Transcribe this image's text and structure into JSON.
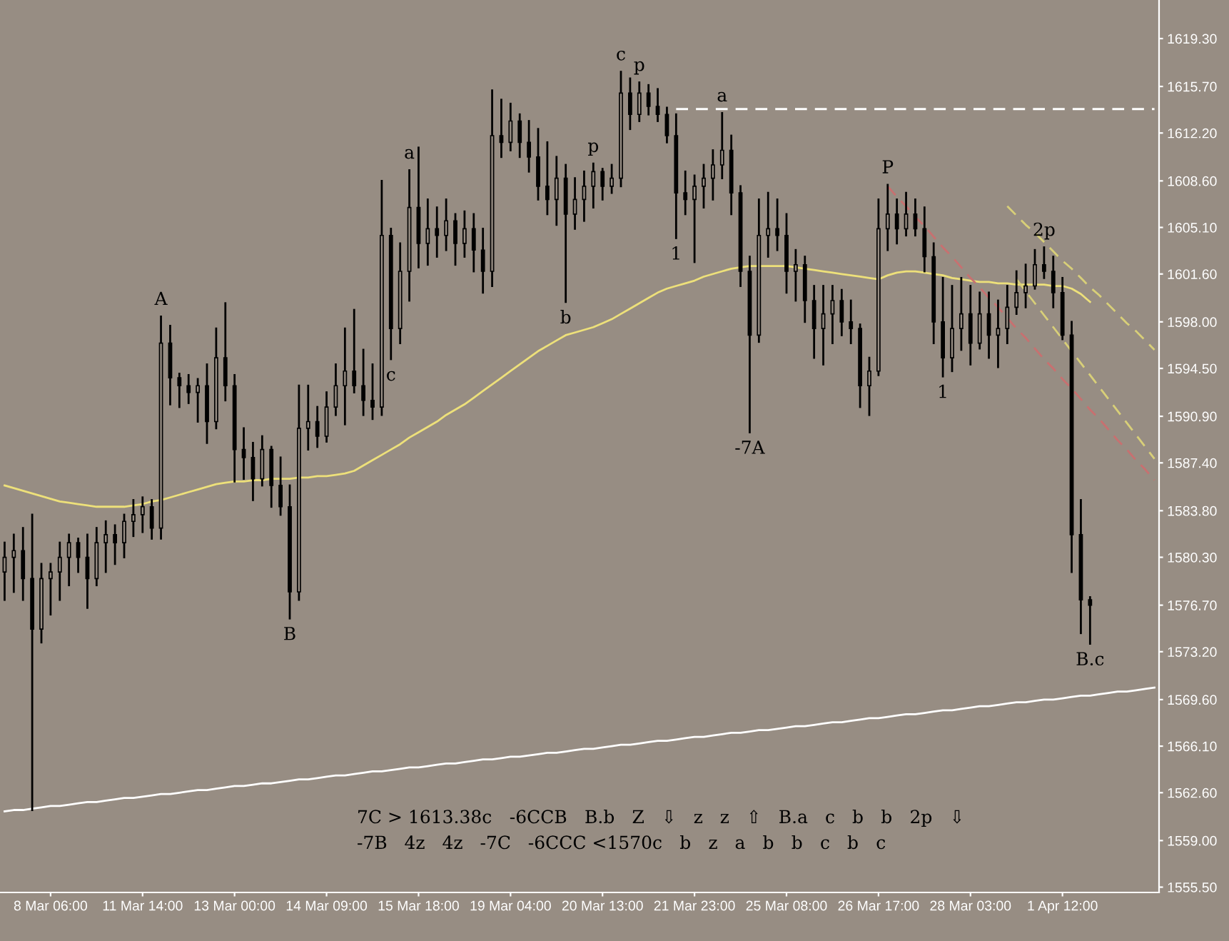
{
  "chart_data": {
    "type": "candlestick",
    "categories": [
      null,
      null,
      null,
      null,
      null,
      "8 Mar 06:00",
      null,
      null,
      null,
      null,
      null,
      null,
      null,
      null,
      null,
      "11 Mar 14:00",
      null,
      null,
      null,
      null,
      null,
      null,
      null,
      null,
      null,
      "13 Mar 00:00",
      null,
      null,
      null,
      null,
      null,
      null,
      null,
      null,
      null,
      "14 Mar 09:00",
      null,
      null,
      null,
      null,
      null,
      null,
      null,
      null,
      null,
      "15 Mar 18:00",
      null,
      null,
      null,
      null,
      null,
      null,
      null,
      null,
      null,
      "19 Mar 04:00",
      null,
      null,
      null,
      null,
      null,
      null,
      null,
      null,
      null,
      "20 Mar 13:00",
      null,
      null,
      null,
      null,
      null,
      null,
      null,
      null,
      null,
      "21 Mar 23:00",
      null,
      null,
      null,
      null,
      null,
      null,
      null,
      null,
      null,
      "25 Mar 08:00",
      null,
      null,
      null,
      null,
      null,
      null,
      null,
      null,
      null,
      "26 Mar 17:00",
      null,
      null,
      null,
      null,
      null,
      null,
      null,
      null,
      null,
      "28 Mar 03:00",
      null,
      null,
      null,
      null,
      null,
      null,
      null,
      null,
      null,
      "1 Apr 12:00",
      null,
      null,
      null,
      null,
      null,
      null,
      null,
      null,
      null,
      null
    ],
    "color": "#000000",
    "ohlc": [
      [
        1579.2,
        1581.4,
        1577.1,
        1580.3
      ],
      [
        1580.3,
        1582.0,
        1577.7,
        1580.8
      ],
      [
        1580.8,
        1582.5,
        1577.1,
        1578.7
      ],
      [
        1578.7,
        1583.5,
        1561.3,
        1574.9
      ],
      [
        1574.9,
        1579.8,
        1573.9,
        1578.7
      ],
      [
        1578.7,
        1579.8,
        1576.0,
        1579.2
      ],
      [
        1579.2,
        1581.4,
        1577.1,
        1580.3
      ],
      [
        1580.3,
        1582.0,
        1578.2,
        1581.4
      ],
      [
        1581.4,
        1581.7,
        1579.2,
        1580.3
      ],
      [
        1580.3,
        1582.0,
        1576.5,
        1578.7
      ],
      [
        1578.7,
        1582.5,
        1578.2,
        1581.4
      ],
      [
        1581.4,
        1583.0,
        1579.2,
        1582.0
      ],
      [
        1582.0,
        1582.7,
        1579.8,
        1581.4
      ],
      [
        1581.4,
        1583.5,
        1580.3,
        1583.0
      ],
      [
        1583.0,
        1584.6,
        1581.9,
        1583.5
      ],
      [
        1583.5,
        1584.8,
        1582.2,
        1584.1
      ],
      [
        1584.1,
        1584.6,
        1581.7,
        1582.5
      ],
      [
        1582.5,
        1598.4,
        1581.7,
        1596.4
      ],
      [
        1596.4,
        1597.7,
        1591.8,
        1593.8
      ],
      [
        1593.8,
        1594.1,
        1591.6,
        1593.2
      ],
      [
        1593.2,
        1594.0,
        1591.9,
        1592.7
      ],
      [
        1592.7,
        1593.7,
        1590.5,
        1593.2
      ],
      [
        1593.2,
        1594.8,
        1588.9,
        1590.5
      ],
      [
        1590.5,
        1597.5,
        1590.0,
        1595.3
      ],
      [
        1595.3,
        1599.4,
        1592.1,
        1593.2
      ],
      [
        1593.2,
        1594.0,
        1586.0,
        1588.4
      ],
      [
        1588.4,
        1590.0,
        1586.2,
        1587.8
      ],
      [
        1587.8,
        1588.9,
        1584.6,
        1586.2
      ],
      [
        1586.2,
        1589.4,
        1585.7,
        1588.4
      ],
      [
        1588.4,
        1588.6,
        1584.1,
        1585.7
      ],
      [
        1585.7,
        1587.8,
        1583.5,
        1584.1
      ],
      [
        1584.1,
        1585.7,
        1575.7,
        1577.7
      ],
      [
        1577.7,
        1593.2,
        1577.1,
        1590.0
      ],
      [
        1590.0,
        1593.2,
        1588.4,
        1590.5
      ],
      [
        1590.5,
        1591.6,
        1588.6,
        1589.4
      ],
      [
        1589.4,
        1592.7,
        1589.0,
        1591.6
      ],
      [
        1591.6,
        1594.8,
        1591.0,
        1593.2
      ],
      [
        1593.2,
        1597.5,
        1590.3,
        1594.3
      ],
      [
        1594.3,
        1598.9,
        1592.7,
        1593.2
      ],
      [
        1593.2,
        1595.9,
        1591.0,
        1592.1
      ],
      [
        1592.1,
        1594.8,
        1590.7,
        1591.6
      ],
      [
        1591.6,
        1608.6,
        1591.0,
        1604.5
      ],
      [
        1604.5,
        1605.0,
        1595.2,
        1597.5
      ],
      [
        1597.5,
        1603.9,
        1596.4,
        1601.8
      ],
      [
        1601.8,
        1609.4,
        1599.6,
        1606.6
      ],
      [
        1606.6,
        1611.1,
        1602.1,
        1603.9
      ],
      [
        1603.9,
        1607.2,
        1602.3,
        1605.0
      ],
      [
        1605.0,
        1606.6,
        1602.9,
        1604.5
      ],
      [
        1604.5,
        1607.2,
        1603.4,
        1605.6
      ],
      [
        1605.6,
        1606.1,
        1602.3,
        1603.9
      ],
      [
        1603.9,
        1606.3,
        1602.9,
        1605.0
      ],
      [
        1605.0,
        1606.1,
        1601.8,
        1603.4
      ],
      [
        1603.4,
        1605.0,
        1600.2,
        1601.8
      ],
      [
        1601.8,
        1615.4,
        1600.7,
        1612.0
      ],
      [
        1612.0,
        1614.7,
        1610.4,
        1611.5
      ],
      [
        1611.5,
        1614.4,
        1610.9,
        1613.1
      ],
      [
        1613.1,
        1613.6,
        1610.4,
        1611.5
      ],
      [
        1611.5,
        1613.1,
        1609.3,
        1610.4
      ],
      [
        1610.4,
        1612.5,
        1607.2,
        1608.2
      ],
      [
        1608.2,
        1611.5,
        1606.1,
        1607.2
      ],
      [
        1607.2,
        1610.4,
        1605.3,
        1608.8
      ],
      [
        1608.8,
        1609.8,
        1599.5,
        1606.1
      ],
      [
        1606.1,
        1608.8,
        1605.0,
        1607.2
      ],
      [
        1607.2,
        1609.3,
        1605.6,
        1608.2
      ],
      [
        1608.2,
        1609.9,
        1606.6,
        1609.3
      ],
      [
        1609.3,
        1609.5,
        1607.2,
        1608.2
      ],
      [
        1608.2,
        1609.8,
        1607.7,
        1608.8
      ],
      [
        1608.8,
        1616.8,
        1608.2,
        1615.2
      ],
      [
        1615.2,
        1616.3,
        1612.5,
        1613.6
      ],
      [
        1613.6,
        1616.0,
        1613.1,
        1615.2
      ],
      [
        1615.2,
        1615.8,
        1613.6,
        1614.2
      ],
      [
        1614.2,
        1615.5,
        1613.1,
        1613.6
      ],
      [
        1613.6,
        1614.1,
        1611.5,
        1612.0
      ],
      [
        1612.0,
        1613.6,
        1604.3,
        1607.7
      ],
      [
        1607.7,
        1609.3,
        1606.1,
        1607.2
      ],
      [
        1607.2,
        1609.0,
        1602.5,
        1608.2
      ],
      [
        1608.2,
        1609.8,
        1606.6,
        1608.8
      ],
      [
        1608.8,
        1610.9,
        1607.2,
        1609.8
      ],
      [
        1609.8,
        1613.7,
        1608.8,
        1610.9
      ],
      [
        1610.9,
        1612.0,
        1606.1,
        1607.7
      ],
      [
        1607.7,
        1608.2,
        1600.7,
        1601.8
      ],
      [
        1601.8,
        1602.9,
        1589.7,
        1597.0
      ],
      [
        1597.0,
        1607.2,
        1596.5,
        1604.5
      ],
      [
        1604.5,
        1607.7,
        1602.9,
        1605.0
      ],
      [
        1605.0,
        1607.2,
        1603.4,
        1604.5
      ],
      [
        1604.5,
        1606.1,
        1600.2,
        1601.8
      ],
      [
        1601.8,
        1603.4,
        1599.6,
        1602.3
      ],
      [
        1602.3,
        1602.9,
        1598.0,
        1599.6
      ],
      [
        1599.6,
        1600.7,
        1595.3,
        1597.5
      ],
      [
        1597.5,
        1600.7,
        1594.8,
        1598.6
      ],
      [
        1598.6,
        1600.7,
        1596.4,
        1599.6
      ],
      [
        1599.6,
        1600.4,
        1597.0,
        1598.0
      ],
      [
        1598.0,
        1599.6,
        1596.4,
        1597.5
      ],
      [
        1597.5,
        1597.8,
        1591.6,
        1593.2
      ],
      [
        1593.2,
        1595.3,
        1591.0,
        1594.3
      ],
      [
        1594.3,
        1607.2,
        1594.0,
        1605.0
      ],
      [
        1605.0,
        1608.3,
        1603.4,
        1606.1
      ],
      [
        1606.1,
        1607.2,
        1603.9,
        1605.0
      ],
      [
        1605.0,
        1607.7,
        1604.5,
        1606.1
      ],
      [
        1606.1,
        1607.2,
        1604.5,
        1605.0
      ],
      [
        1605.0,
        1606.6,
        1601.8,
        1602.9
      ],
      [
        1602.9,
        1603.9,
        1596.4,
        1598.0
      ],
      [
        1598.0,
        1601.3,
        1593.9,
        1595.3
      ],
      [
        1595.3,
        1600.7,
        1594.3,
        1597.5
      ],
      [
        1597.5,
        1601.3,
        1595.9,
        1598.6
      ],
      [
        1598.6,
        1600.7,
        1594.8,
        1596.4
      ],
      [
        1596.4,
        1600.2,
        1596.0,
        1598.6
      ],
      [
        1598.6,
        1600.2,
        1595.3,
        1597.0
      ],
      [
        1597.0,
        1599.6,
        1594.6,
        1597.5
      ],
      [
        1597.5,
        1600.7,
        1596.4,
        1599.1
      ],
      [
        1599.1,
        1601.8,
        1598.6,
        1600.2
      ],
      [
        1600.2,
        1602.3,
        1599.1,
        1600.7
      ],
      [
        1600.7,
        1603.4,
        1600.5,
        1602.3
      ],
      [
        1602.3,
        1603.6,
        1601.3,
        1601.8
      ],
      [
        1601.8,
        1602.9,
        1599.1,
        1600.2
      ],
      [
        1600.2,
        1601.3,
        1596.7,
        1597.0
      ],
      [
        1597.0,
        1598.0,
        1579.2,
        1582.0
      ],
      [
        1582.0,
        1584.6,
        1574.6,
        1577.1
      ],
      [
        1577.1,
        1577.3,
        1573.8,
        1576.7
      ],
      null,
      null,
      null,
      null,
      null,
      null,
      null
    ],
    "series": [
      {
        "type": "line",
        "color": "#ede07a",
        "line_style": "solid",
        "values": [
          1585.7,
          1585.5,
          1585.3,
          1585.1,
          1584.9,
          1584.7,
          1584.5,
          1584.4,
          1584.3,
          1584.2,
          1584.1,
          1584.1,
          1584.1,
          1584.1,
          1584.2,
          1584.3,
          1584.5,
          1584.6,
          1584.8,
          1585.0,
          1585.2,
          1585.4,
          1585.6,
          1585.8,
          1585.9,
          1586.0,
          1586.0,
          1586.1,
          1586.1,
          1586.2,
          1586.2,
          1586.2,
          1586.3,
          1586.3,
          1586.4,
          1586.4,
          1586.5,
          1586.6,
          1586.8,
          1587.2,
          1587.6,
          1588.0,
          1588.4,
          1588.8,
          1589.3,
          1589.7,
          1590.1,
          1590.5,
          1591.0,
          1591.4,
          1591.8,
          1592.3,
          1592.8,
          1593.3,
          1593.8,
          1594.3,
          1594.8,
          1595.3,
          1595.8,
          1596.2,
          1596.6,
          1597.0,
          1597.2,
          1597.4,
          1597.6,
          1597.9,
          1598.2,
          1598.6,
          1599.0,
          1599.4,
          1599.8,
          1600.2,
          1600.5,
          1600.7,
          1600.9,
          1601.1,
          1601.4,
          1601.6,
          1601.8,
          1602.0,
          1602.1,
          1602.2,
          1602.2,
          1602.2,
          1602.2,
          1602.2,
          1602.1,
          1602.0,
          1601.9,
          1601.8,
          1601.7,
          1601.6,
          1601.5,
          1601.4,
          1601.3,
          1601.2,
          1601.5,
          1601.7,
          1601.8,
          1601.8,
          1601.7,
          1601.6,
          1601.5,
          1601.3,
          1601.2,
          1601.1,
          1601.0,
          1601.0,
          1600.9,
          1600.9,
          1600.8,
          1600.8,
          1600.8,
          1600.8,
          1600.7,
          1600.7,
          1600.5,
          1600.1,
          1599.5,
          null,
          null,
          null,
          null,
          null,
          null,
          null
        ]
      },
      {
        "type": "line",
        "color": "#ffffff",
        "line_style": "solid",
        "values": [
          1561.2,
          1561.3,
          1561.3,
          1561.4,
          1561.5,
          1561.6,
          1561.6,
          1561.7,
          1561.8,
          1561.9,
          1561.9,
          1562.0,
          1562.1,
          1562.2,
          1562.2,
          1562.3,
          1562.4,
          1562.5,
          1562.5,
          1562.6,
          1562.7,
          1562.8,
          1562.8,
          1562.9,
          1563.0,
          1563.1,
          1563.1,
          1563.2,
          1563.3,
          1563.3,
          1563.4,
          1563.5,
          1563.6,
          1563.6,
          1563.7,
          1563.8,
          1563.9,
          1563.9,
          1564.0,
          1564.1,
          1564.2,
          1564.2,
          1564.3,
          1564.4,
          1564.5,
          1564.5,
          1564.6,
          1564.7,
          1564.8,
          1564.8,
          1564.9,
          1565.0,
          1565.1,
          1565.1,
          1565.2,
          1565.3,
          1565.3,
          1565.4,
          1565.5,
          1565.6,
          1565.6,
          1565.7,
          1565.8,
          1565.9,
          1565.9,
          1566.0,
          1566.1,
          1566.2,
          1566.2,
          1566.3,
          1566.4,
          1566.5,
          1566.5,
          1566.6,
          1566.7,
          1566.8,
          1566.8,
          1566.9,
          1567.0,
          1567.1,
          1567.1,
          1567.2,
          1567.3,
          1567.3,
          1567.4,
          1567.5,
          1567.6,
          1567.6,
          1567.7,
          1567.8,
          1567.9,
          1567.9,
          1568.0,
          1568.1,
          1568.2,
          1568.2,
          1568.3,
          1568.4,
          1568.5,
          1568.5,
          1568.6,
          1568.7,
          1568.8,
          1568.8,
          1568.9,
          1569.0,
          1569.1,
          1569.1,
          1569.2,
          1569.3,
          1569.4,
          1569.4,
          1569.5,
          1569.6,
          1569.6,
          1569.7,
          1569.8,
          1569.9,
          1569.9,
          1570.0,
          1570.1,
          1570.2,
          1570.2,
          1570.3,
          1570.4,
          1570.5
        ]
      },
      {
        "type": "line",
        "color": "#ffffff",
        "line_style": "dashed",
        "values": [
          null,
          null,
          null,
          null,
          null,
          null,
          null,
          null,
          null,
          null,
          null,
          null,
          null,
          null,
          null,
          null,
          null,
          null,
          null,
          null,
          null,
          null,
          null,
          null,
          null,
          null,
          null,
          null,
          null,
          null,
          null,
          null,
          null,
          null,
          null,
          null,
          null,
          null,
          null,
          null,
          null,
          null,
          null,
          null,
          null,
          null,
          null,
          null,
          null,
          null,
          null,
          null,
          null,
          null,
          null,
          null,
          null,
          null,
          null,
          null,
          null,
          null,
          null,
          null,
          null,
          null,
          null,
          null,
          null,
          null,
          null,
          null,
          null,
          1614.0,
          1614.0,
          1614.0,
          1614.0,
          1614.0,
          1614.0,
          1614.0,
          1614.0,
          1614.0,
          1614.0,
          1614.0,
          1614.0,
          1614.0,
          1614.0,
          1614.0,
          1614.0,
          1614.0,
          1614.0,
          1614.0,
          1614.0,
          1614.0,
          1614.0,
          1614.0,
          1614.0,
          1614.0,
          1614.0,
          1614.0,
          1614.0,
          1614.0,
          1614.0,
          1614.0,
          1614.0,
          1614.0,
          1614.0,
          1614.0,
          1614.0,
          1614.0,
          1614.0,
          1614.0,
          1614.0,
          1614.0,
          1614.0,
          1614.0,
          1614.0,
          1614.0,
          1614.0,
          1614.0,
          1614.0,
          1614.0,
          1614.0,
          1614.0,
          1614.0,
          1614.0
        ]
      },
      {
        "type": "line",
        "color": "#c87070",
        "line_style": "dashed",
        "values": [
          null,
          null,
          null,
          null,
          null,
          null,
          null,
          null,
          null,
          null,
          null,
          null,
          null,
          null,
          null,
          null,
          null,
          null,
          null,
          null,
          null,
          null,
          null,
          null,
          null,
          null,
          null,
          null,
          null,
          null,
          null,
          null,
          null,
          null,
          null,
          null,
          null,
          null,
          null,
          null,
          null,
          null,
          null,
          null,
          null,
          null,
          null,
          null,
          null,
          null,
          null,
          null,
          null,
          null,
          null,
          null,
          null,
          null,
          null,
          null,
          null,
          null,
          null,
          null,
          null,
          null,
          null,
          null,
          null,
          null,
          null,
          null,
          null,
          null,
          null,
          null,
          null,
          null,
          null,
          null,
          null,
          null,
          null,
          null,
          null,
          null,
          null,
          null,
          null,
          null,
          null,
          null,
          null,
          null,
          null,
          null,
          1608.2,
          1607.4,
          1606.7,
          1605.9,
          1605.2,
          1604.4,
          1603.6,
          1602.9,
          1602.1,
          1601.3,
          1600.6,
          1599.8,
          1599.1,
          1598.3,
          1597.5,
          1596.8,
          1596.0,
          1595.2,
          1594.5,
          1593.7,
          1593.0,
          1592.2,
          1591.4,
          1590.7,
          1589.9,
          1589.1,
          1588.4,
          1587.6,
          1586.9,
          1586.1
        ]
      },
      {
        "type": "line",
        "color": "#d8cf78",
        "line_style": "dashed",
        "values": [
          null,
          null,
          null,
          null,
          null,
          null,
          null,
          null,
          null,
          null,
          null,
          null,
          null,
          null,
          null,
          null,
          null,
          null,
          null,
          null,
          null,
          null,
          null,
          null,
          null,
          null,
          null,
          null,
          null,
          null,
          null,
          null,
          null,
          null,
          null,
          null,
          null,
          null,
          null,
          null,
          null,
          null,
          null,
          null,
          null,
          null,
          null,
          null,
          null,
          null,
          null,
          null,
          null,
          null,
          null,
          null,
          null,
          null,
          null,
          null,
          null,
          null,
          null,
          null,
          null,
          null,
          null,
          null,
          null,
          null,
          null,
          null,
          null,
          null,
          null,
          null,
          null,
          null,
          null,
          null,
          null,
          null,
          null,
          null,
          null,
          null,
          null,
          null,
          null,
          null,
          null,
          null,
          null,
          null,
          null,
          null,
          null,
          null,
          null,
          null,
          null,
          null,
          null,
          null,
          null,
          null,
          null,
          null,
          null,
          1606.7,
          1606.0,
          1605.3,
          1604.7,
          1604.0,
          1603.3,
          1602.6,
          1602.0,
          1601.3,
          1600.6,
          1600.0,
          1599.3,
          1598.6,
          1597.9,
          1597.3,
          1596.6,
          1595.9
        ]
      },
      {
        "type": "line",
        "color": "#d8cf78",
        "line_style": "dashed",
        "values": [
          null,
          null,
          null,
          null,
          null,
          null,
          null,
          null,
          null,
          null,
          null,
          null,
          null,
          null,
          null,
          null,
          null,
          null,
          null,
          null,
          null,
          null,
          null,
          null,
          null,
          null,
          null,
          null,
          null,
          null,
          null,
          null,
          null,
          null,
          null,
          null,
          null,
          null,
          null,
          null,
          null,
          null,
          null,
          null,
          null,
          null,
          null,
          null,
          null,
          null,
          null,
          null,
          null,
          null,
          null,
          null,
          null,
          null,
          null,
          null,
          null,
          null,
          null,
          null,
          null,
          null,
          null,
          null,
          null,
          null,
          null,
          null,
          null,
          null,
          null,
          null,
          null,
          null,
          null,
          null,
          null,
          null,
          null,
          null,
          null,
          null,
          null,
          null,
          null,
          null,
          null,
          null,
          null,
          null,
          null,
          null,
          null,
          null,
          null,
          null,
          null,
          null,
          null,
          null,
          null,
          null,
          null,
          null,
          null,
          null,
          1601.2,
          1600.3,
          1599.4,
          1598.5,
          1597.6,
          1596.7,
          1595.8,
          1594.9,
          1594.0,
          1593.1,
          1592.2,
          1591.3,
          1590.4,
          1589.5,
          1588.6,
          1587.7
        ]
      }
    ],
    "ylim": [
      1555.1,
      1622.2
    ],
    "yticks": [
      {
        "value": 1619.3,
        "label": "1619.30"
      },
      {
        "value": 1615.7,
        "label": "1615.70"
      },
      {
        "value": 1612.2,
        "label": "1612.20"
      },
      {
        "value": 1608.6,
        "label": "1608.60"
      },
      {
        "value": 1605.1,
        "label": "1605.10"
      },
      {
        "value": 1601.6,
        "label": "1601.60"
      },
      {
        "value": 1598.0,
        "label": "1598.00"
      },
      {
        "value": 1594.5,
        "label": "1594.50"
      },
      {
        "value": 1590.9,
        "label": "1590.90"
      },
      {
        "value": 1587.4,
        "label": "1587.40"
      },
      {
        "value": 1583.8,
        "label": "1583.80"
      },
      {
        "value": 1580.3,
        "label": "1580.30"
      },
      {
        "value": 1576.7,
        "label": "1576.70"
      },
      {
        "value": 1573.2,
        "label": "1573.20"
      },
      {
        "value": 1569.6,
        "label": "1569.60"
      },
      {
        "value": 1566.1,
        "label": "1566.10"
      },
      {
        "value": 1562.6,
        "label": "1562.60"
      },
      {
        "value": 1559.0,
        "label": "1559.00"
      },
      {
        "value": 1555.5,
        "label": "1555.50"
      }
    ],
    "grid": false,
    "annotations": [
      {
        "text": "c",
        "y": 1616.8
      },
      {
        "text": "p",
        "y": 1616.0
      },
      {
        "text": "a",
        "y": 1613.7
      },
      {
        "text": "a",
        "y": 1609.4
      },
      {
        "text": "p",
        "y": 1609.9
      },
      {
        "text": "1",
        "y": 1604.3
      },
      {
        "text": "b",
        "y": 1599.5
      },
      {
        "text": "c",
        "y": 1595.2
      },
      {
        "text": "A",
        "y": 1598.4
      },
      {
        "text": "B",
        "y": 1575.7
      },
      {
        "text": "-7A",
        "y": 1589.7
      },
      {
        "text": "P",
        "y": 1608.3
      },
      {
        "text": "1",
        "y": 1593.9
      },
      {
        "text": "2p",
        "y": 1603.6
      },
      {
        "text": "B.c",
        "y": 1573.8
      },
      "7C > 1613.38c",
      "-6CCB",
      "B.b",
      "Z",
      "⇩",
      "z",
      "z",
      "⇧",
      "B.a",
      "c",
      "b",
      "b",
      "2p",
      "⇩",
      "-7B",
      "4z",
      "4z",
      "-7C",
      "-6CCC <1570c",
      "b",
      "z",
      "a",
      "b",
      "b",
      "c",
      "b",
      "c"
    ]
  }
}
